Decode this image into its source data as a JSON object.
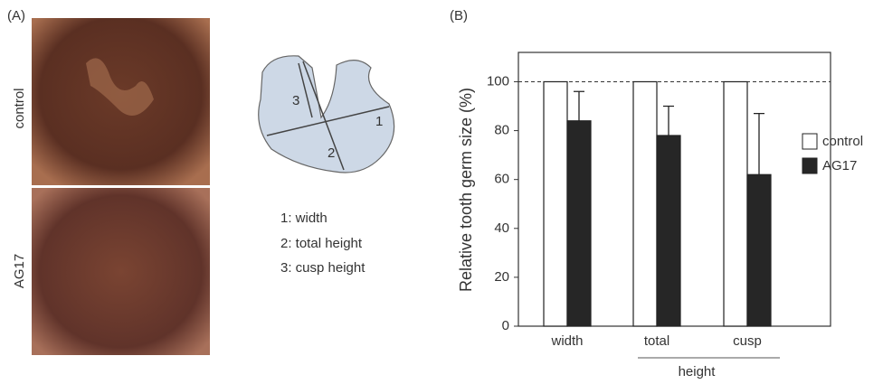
{
  "panel_a": {
    "label": "(A)",
    "images": [
      "control",
      "AG17"
    ],
    "diagram_labels": [
      "1",
      "2",
      "3"
    ],
    "legend": [
      "1: width",
      "2: total height",
      "3: cusp height"
    ]
  },
  "chart_data": {
    "type": "bar",
    "label": "(B)",
    "ylabel": "Relative tooth germ size (%)",
    "categories": [
      "width",
      "total",
      "cusp"
    ],
    "group_label": "height",
    "series": [
      {
        "name": "control",
        "color": "#ffffff",
        "values": [
          100,
          100,
          100
        ]
      },
      {
        "name": "AG17",
        "color": "#262626",
        "values": [
          84,
          78,
          62
        ],
        "errors": [
          12,
          12,
          25
        ]
      }
    ],
    "ylim": [
      0,
      112
    ],
    "yticks": [
      0,
      20,
      40,
      60,
      80,
      100
    ],
    "reference_line": 100
  }
}
